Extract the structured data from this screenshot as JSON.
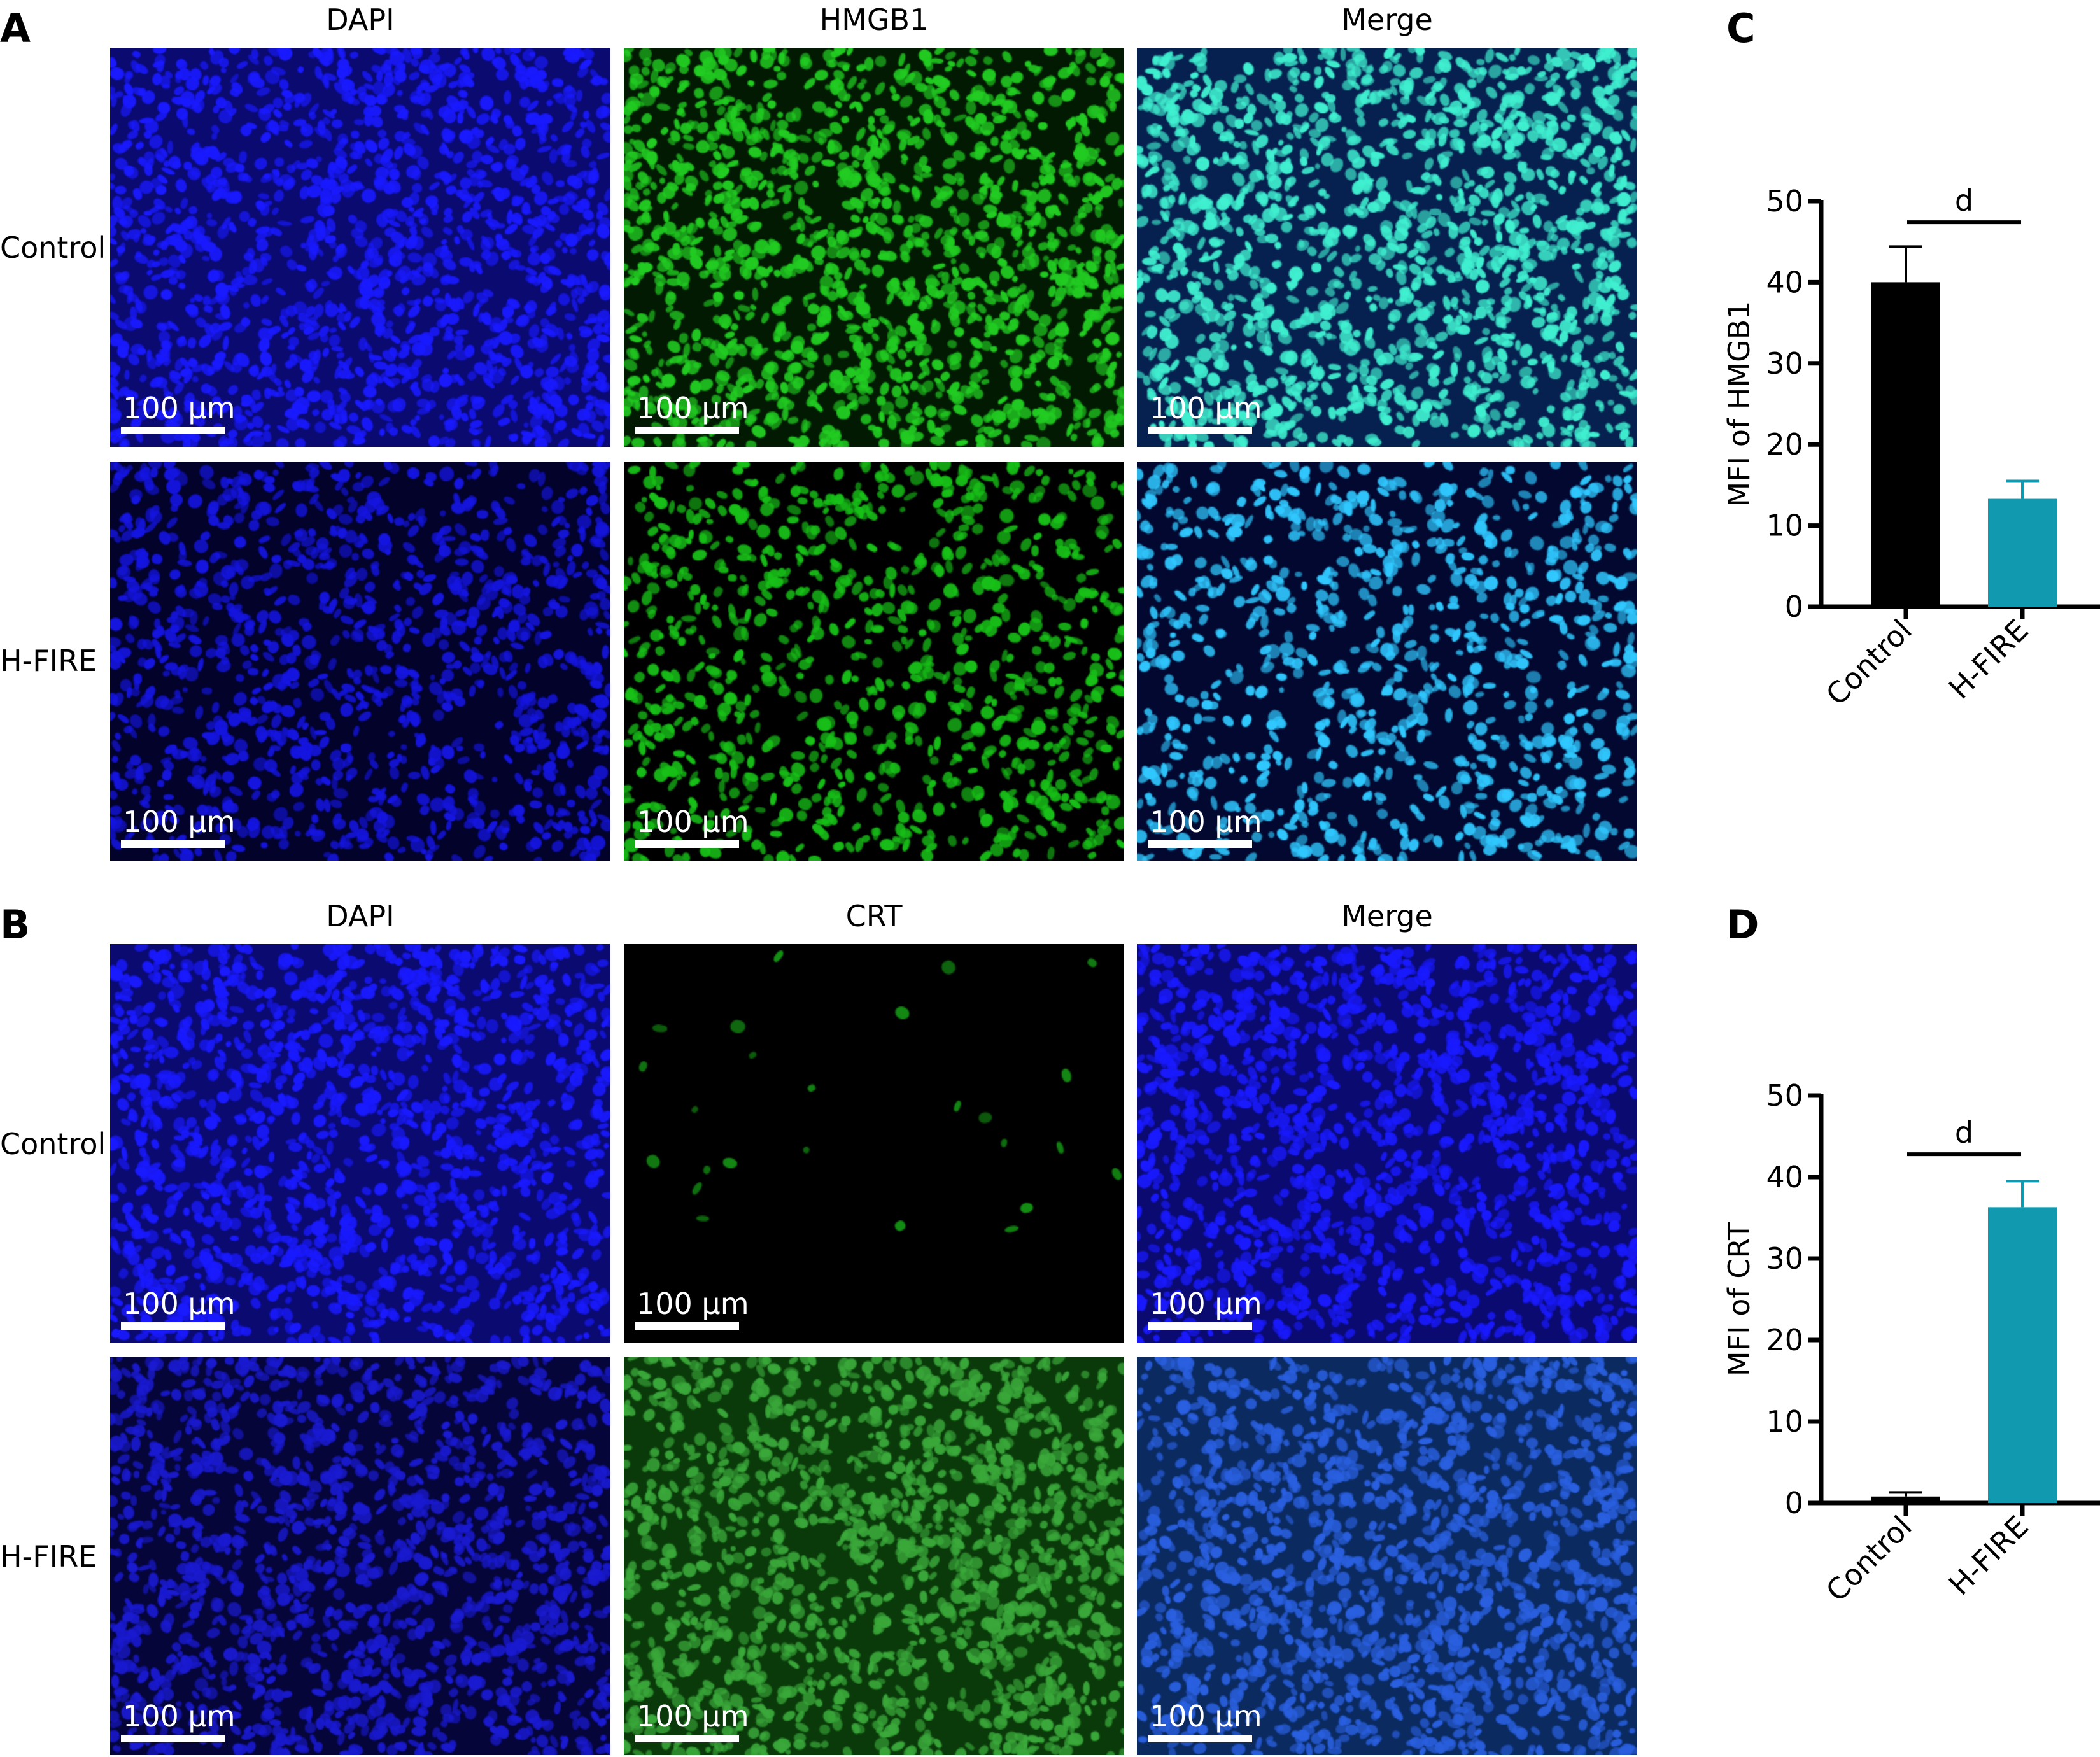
{
  "panel_letters": [
    "A",
    "B",
    "C",
    "D"
  ],
  "figure_A": {
    "columns": [
      "DAPI",
      "HMGB1",
      "Merge"
    ],
    "rows": [
      "Control",
      "H-FIRE"
    ],
    "scale_bar": "100 μm"
  },
  "figure_B": {
    "columns": [
      "DAPI",
      "CRT",
      "Merge"
    ],
    "rows": [
      "Control",
      "H-FIRE"
    ],
    "scale_bar": "100 μm"
  },
  "colors": {
    "control": "#000000",
    "hfire": "#1199b0"
  },
  "chart_data": [
    {
      "type": "bar",
      "panel": "C",
      "categories": [
        "Control",
        "H-FIRE"
      ],
      "values": [
        40.0,
        13.3
      ],
      "error_upper": [
        44.4,
        15.5
      ],
      "ylabel": "MFI of HMGB1",
      "xlabel": "",
      "ylim": [
        0,
        50
      ],
      "yticks": [
        "0",
        "10",
        "20",
        "30",
        "40",
        "50"
      ],
      "significance": "d"
    },
    {
      "type": "bar",
      "panel": "D",
      "categories": [
        "Control",
        "H-FIRE"
      ],
      "values": [
        0.8,
        36.3
      ],
      "error_upper": [
        1.3,
        39.5
      ],
      "ylabel": "MFI of CRT",
      "xlabel": "",
      "ylim": [
        0,
        50
      ],
      "yticks": [
        "0",
        "10",
        "20",
        "30",
        "40",
        "50"
      ],
      "significance": "d"
    }
  ]
}
